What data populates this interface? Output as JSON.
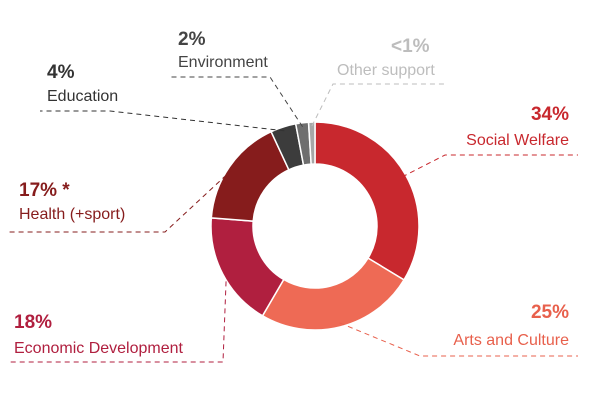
{
  "chart_data": {
    "type": "pie",
    "variant": "donut",
    "categories": [
      "Social Welfare",
      "Arts and Culture",
      "Economic Development",
      "Health (+sport)",
      "Education",
      "Environment",
      "Other support"
    ],
    "values": [
      34,
      25,
      18,
      17,
      4,
      2,
      1
    ],
    "labels": [
      {
        "name": "Social Welfare",
        "percent_text": "34%",
        "color": "#c8282e"
      },
      {
        "name": "Arts and Culture",
        "percent_text": "25%",
        "color": "#ee6a55"
      },
      {
        "name": "Economic Development",
        "percent_text": "18%",
        "color": "#b01f3f"
      },
      {
        "name": "Health (+sport)",
        "percent_text": "17% *",
        "color": "#861c1c"
      },
      {
        "name": "Education",
        "percent_text": "4%",
        "color": "#3c3c3c"
      },
      {
        "name": "Environment",
        "percent_text": "2%",
        "color": "#6e6e6e"
      },
      {
        "name": "Other support",
        "percent_text": "<1%",
        "color": "#a7a7a7"
      }
    ],
    "label_text_colors": {
      "Social Welfare": "#c8282e",
      "Arts and Culture": "#e8604c",
      "Economic Development": "#b01f3f",
      "Health (+sport)": "#861c1c",
      "Education": "#333333",
      "Environment": "#444444",
      "Other support": "#bdbdbd"
    },
    "start": "12 o'clock",
    "direction": "clockwise"
  }
}
